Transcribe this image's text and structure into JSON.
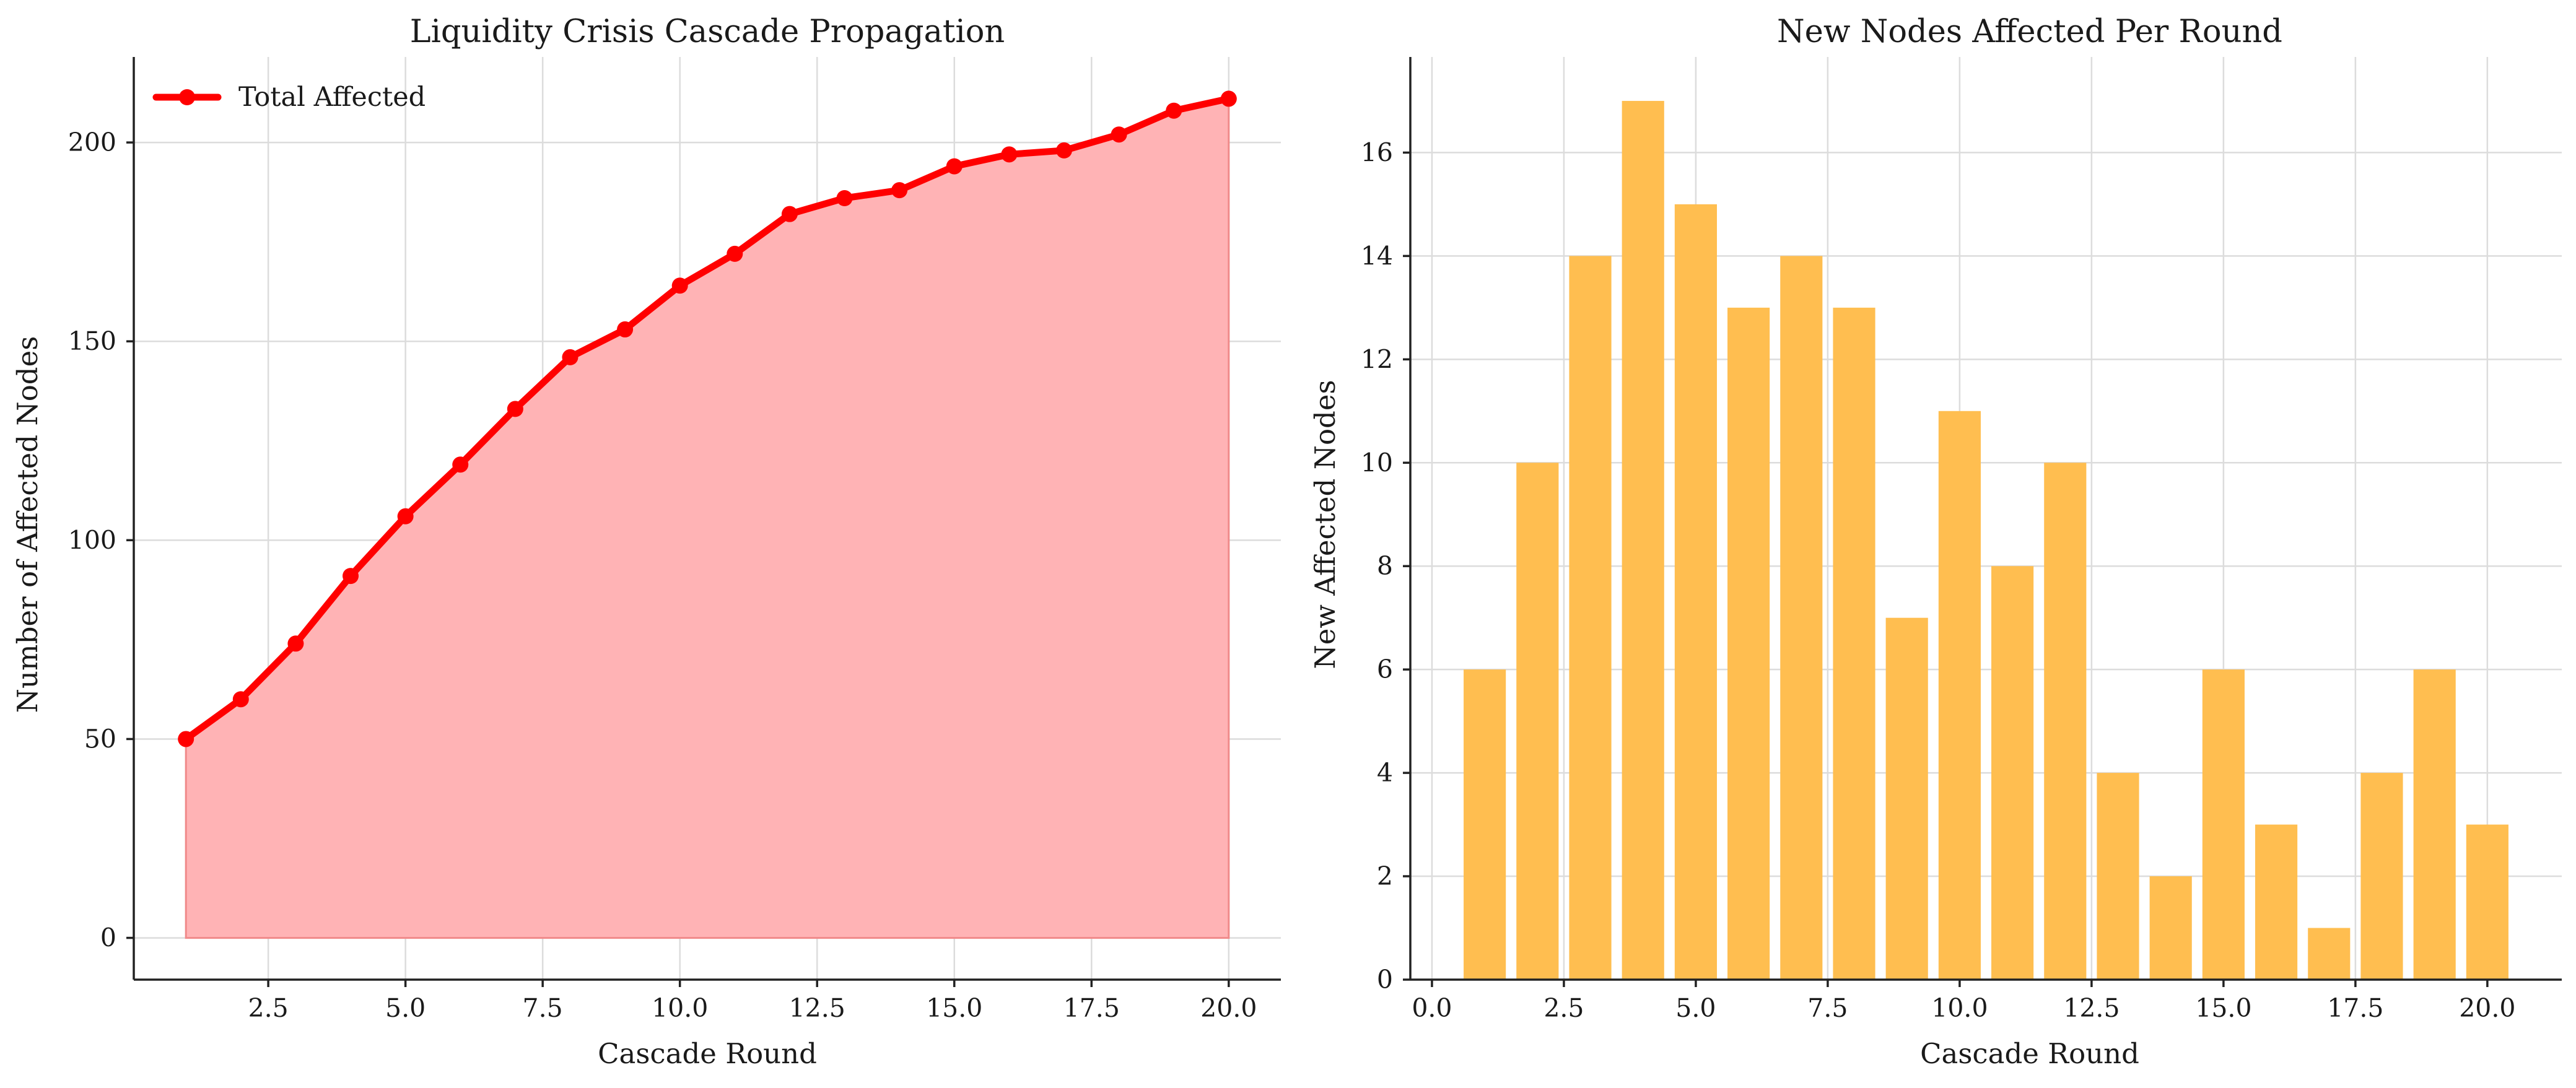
{
  "chart_data": [
    {
      "type": "area",
      "title": "Liquidity Crisis Cascade Propagation",
      "xlabel": "Cascade Round",
      "ylabel": "Number of Affected Nodes",
      "xlim": [
        0.05,
        20.95
      ],
      "ylim": [
        -10.5,
        221.5
      ],
      "xticks": [
        2.5,
        5.0,
        7.5,
        10.0,
        12.5,
        15.0,
        17.5,
        20.0
      ],
      "xtick_labels": [
        "2.5",
        "5.0",
        "7.5",
        "10.0",
        "12.5",
        "15.0",
        "17.5",
        "20.0"
      ],
      "yticks": [
        0,
        50,
        100,
        150,
        200
      ],
      "ytick_labels": [
        "0",
        "50",
        "100",
        "150",
        "200"
      ],
      "grid": true,
      "legend_position": "top-left",
      "x": [
        1,
        2,
        3,
        4,
        5,
        6,
        7,
        8,
        9,
        10,
        11,
        12,
        13,
        14,
        15,
        16,
        17,
        18,
        19,
        20
      ],
      "series": [
        {
          "name": "Total Affected",
          "values": [
            50,
            60,
            74,
            91,
            106,
            119,
            133,
            146,
            153,
            164,
            172,
            182,
            186,
            188,
            194,
            197,
            198,
            202,
            208,
            211
          ],
          "line_color": "#ff0000",
          "fill_color": "#ffb3b5"
        }
      ]
    },
    {
      "type": "bar",
      "title": "New Nodes Affected Per Round",
      "xlabel": "Cascade Round",
      "ylabel": "New Affected Nodes",
      "xlim": [
        -0.41,
        21.41
      ],
      "ylim": [
        0,
        17.85
      ],
      "xticks": [
        0.0,
        2.5,
        5.0,
        7.5,
        10.0,
        12.5,
        15.0,
        17.5,
        20.0
      ],
      "xtick_labels": [
        "0.0",
        "2.5",
        "5.0",
        "7.5",
        "10.0",
        "12.5",
        "15.0",
        "17.5",
        "20.0"
      ],
      "yticks": [
        0,
        2,
        4,
        6,
        8,
        10,
        12,
        14,
        16
      ],
      "ytick_labels": [
        "0",
        "2",
        "4",
        "6",
        "8",
        "10",
        "12",
        "14",
        "16"
      ],
      "grid": true,
      "x": [
        1,
        2,
        3,
        4,
        5,
        6,
        7,
        8,
        9,
        10,
        11,
        12,
        13,
        14,
        15,
        16,
        17,
        18,
        19,
        20
      ],
      "values": [
        6,
        10,
        14,
        17,
        15,
        13,
        14,
        13,
        7,
        11,
        8,
        10,
        4,
        2,
        6,
        3,
        1,
        4,
        6,
        3
      ],
      "bar_color": "#ffbe50"
    }
  ]
}
